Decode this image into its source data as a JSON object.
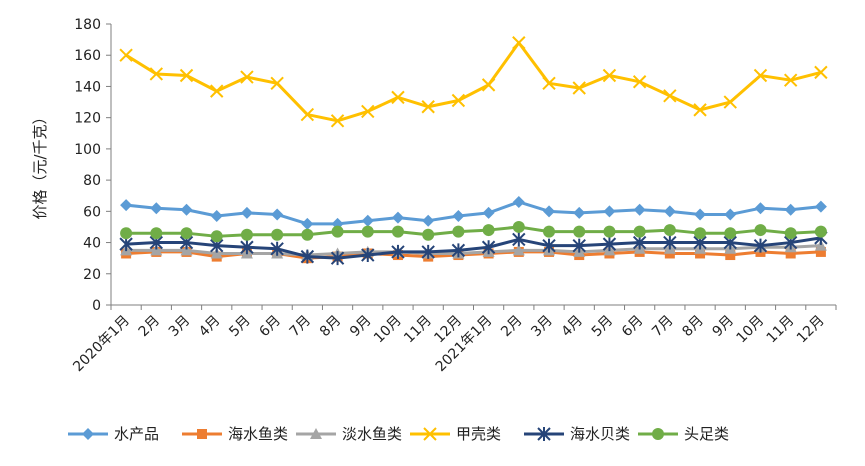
{
  "chart_data": {
    "type": "line",
    "ylabel": "价格（元/千克）",
    "ylim": [
      0,
      180
    ],
    "yticks": [
      0,
      20,
      40,
      60,
      80,
      100,
      120,
      140,
      160,
      180
    ],
    "grid": false,
    "legend_position": "bottom",
    "categories": [
      "2020年1月",
      "2月",
      "3月",
      "4月",
      "5月",
      "6月",
      "7月",
      "8月",
      "9月",
      "10月",
      "11月",
      "12月",
      "2021年1月",
      "2月",
      "3月",
      "4月",
      "5月",
      "6月",
      "7月",
      "8月",
      "9月",
      "10月",
      "11月",
      "12月"
    ],
    "series": [
      {
        "name": "水产品",
        "color": "#5B9BD5",
        "marker": "diamond",
        "values": [
          64,
          62,
          61,
          57,
          59,
          58,
          52,
          52,
          54,
          56,
          54,
          57,
          59,
          66,
          60,
          59,
          60,
          61,
          60,
          58,
          58,
          62,
          61,
          63
        ]
      },
      {
        "name": "海水鱼类",
        "color": "#ED7D31",
        "marker": "square",
        "values": [
          33,
          34,
          34,
          31,
          33,
          33,
          30,
          31,
          33,
          32,
          31,
          32,
          33,
          34,
          34,
          32,
          33,
          34,
          33,
          33,
          32,
          34,
          33,
          34
        ]
      },
      {
        "name": "淡水鱼类",
        "color": "#A5A5A5",
        "marker": "triangle",
        "values": [
          35,
          35,
          35,
          33,
          33,
          33,
          32,
          33,
          34,
          34,
          33,
          33,
          34,
          35,
          35,
          34,
          35,
          36,
          36,
          36,
          36,
          37,
          37,
          38
        ]
      },
      {
        "name": "甲壳类",
        "color": "#FFC000",
        "marker": "x",
        "values": [
          160,
          148,
          147,
          137,
          146,
          142,
          122,
          118,
          124,
          133,
          127,
          131,
          141,
          168,
          142,
          139,
          147,
          143,
          134,
          125,
          130,
          147,
          144,
          149
        ]
      },
      {
        "name": "海水贝类",
        "color": "#264478",
        "marker": "asterisk",
        "values": [
          39,
          40,
          40,
          38,
          37,
          36,
          31,
          30,
          32,
          34,
          34,
          35,
          37,
          42,
          38,
          38,
          39,
          40,
          40,
          40,
          40,
          38,
          40,
          43
        ]
      },
      {
        "name": "头足类",
        "color": "#70AD47",
        "marker": "circle",
        "values": [
          46,
          46,
          46,
          44,
          45,
          45,
          45,
          47,
          47,
          47,
          45,
          47,
          48,
          50,
          47,
          47,
          47,
          47,
          48,
          46,
          46,
          48,
          46,
          47
        ]
      }
    ]
  }
}
